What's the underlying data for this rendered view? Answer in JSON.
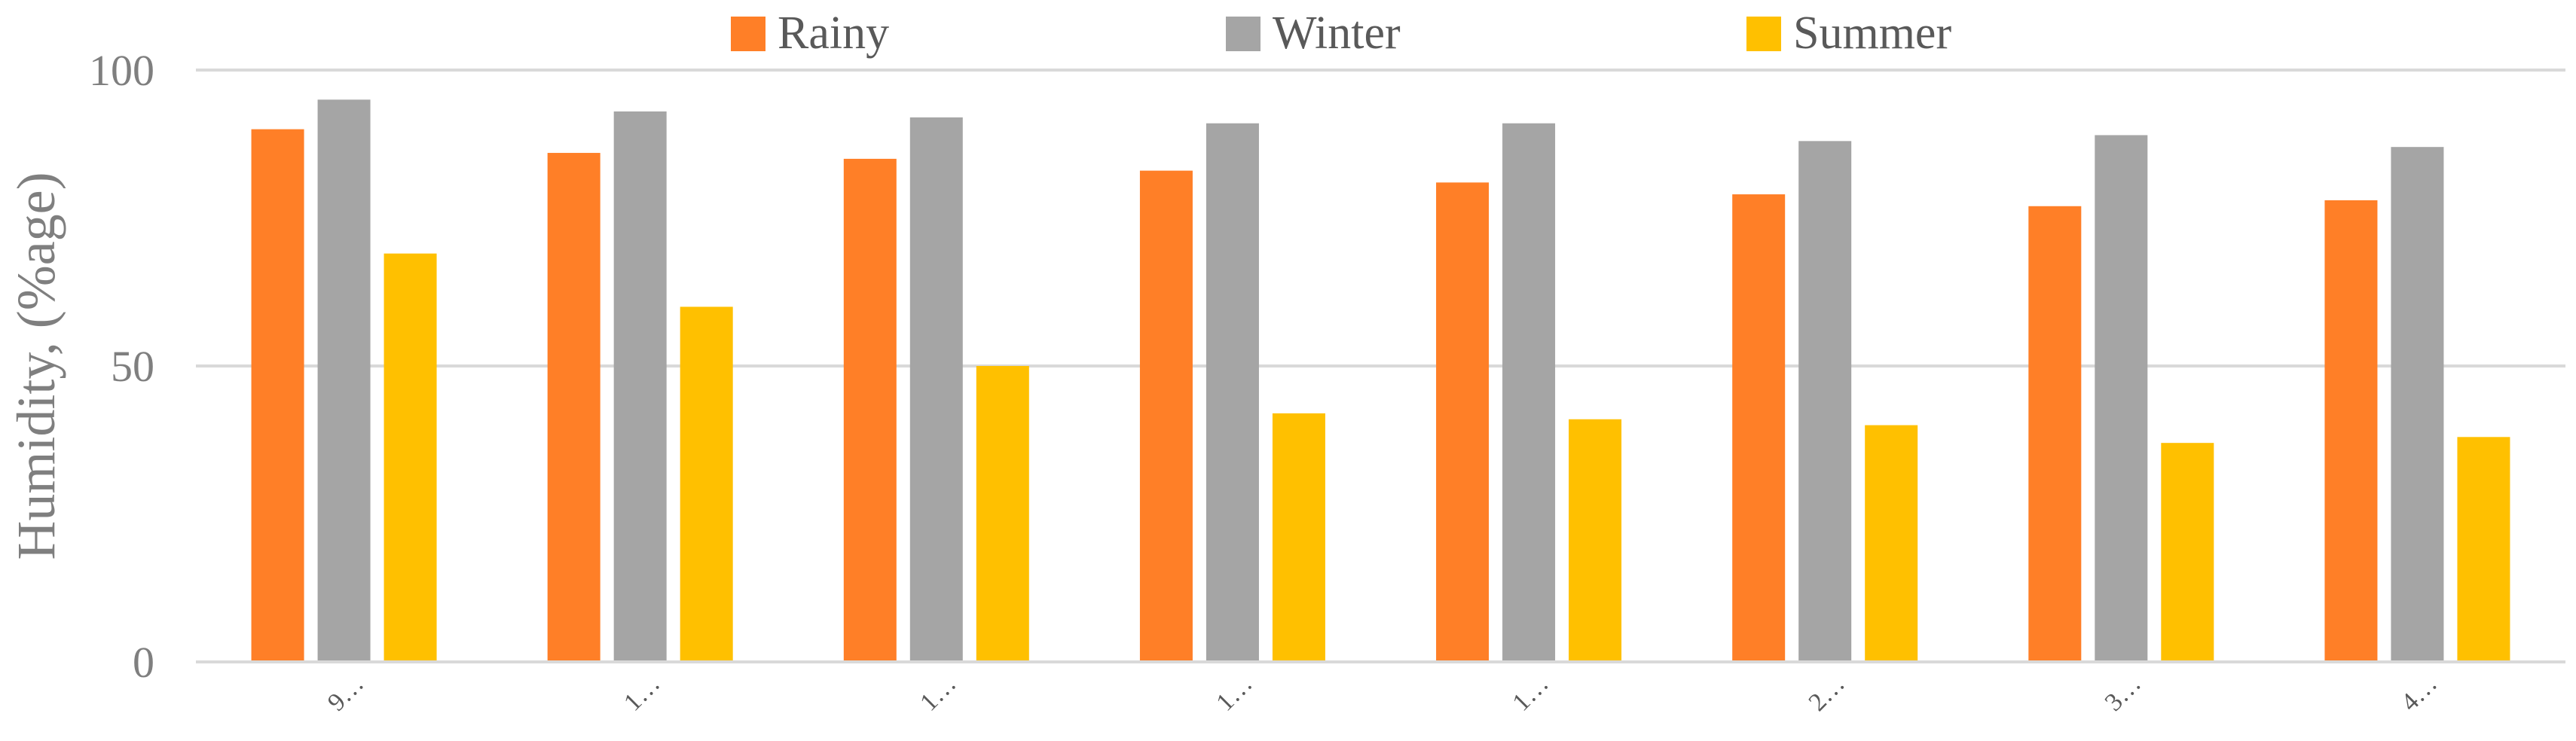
{
  "chart_data": {
    "type": "bar",
    "ylabel": "Humidity, (%age)",
    "xlabel": "",
    "categories": [
      "9…",
      "1…",
      "1…",
      "1…",
      "1…",
      "2…",
      "3…",
      "4…"
    ],
    "series": [
      {
        "name": "Rainy",
        "color": "#FF7F27",
        "values": [
          90,
          86,
          85,
          83,
          81,
          79,
          77,
          78
        ]
      },
      {
        "name": "Winter",
        "color": "#A5A5A5",
        "values": [
          95,
          93,
          92,
          91,
          91,
          88,
          89,
          87
        ]
      },
      {
        "name": "Summer",
        "color": "#FFC000",
        "values": [
          69,
          60,
          50,
          42,
          41,
          40,
          37,
          38
        ]
      }
    ],
    "ylim": [
      0,
      100
    ],
    "yticks": [
      0,
      50,
      100
    ],
    "grid": true,
    "legend_position": "top"
  }
}
